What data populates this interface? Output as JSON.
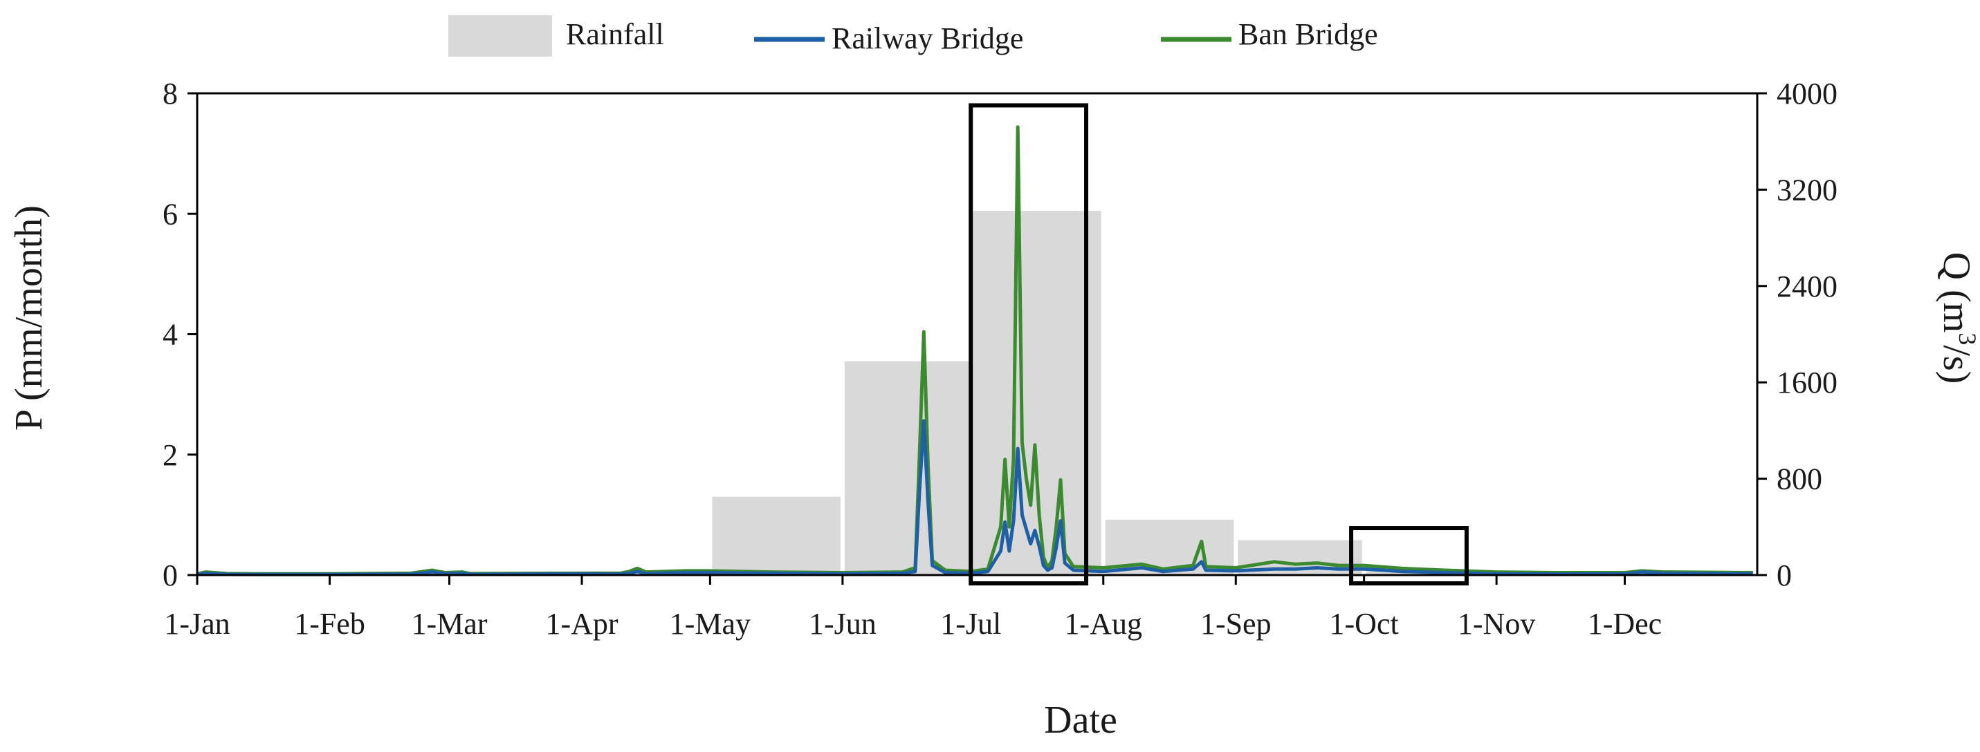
{
  "chart_data": {
    "type": "area+line",
    "xlabel": "Date",
    "ylabel_left": "P (mm/month)",
    "ylabel_right_base": "Q (m",
    "ylabel_right_sup": "3",
    "ylabel_right_end": "/s)",
    "x_ticks": [
      "1-Jan",
      "1-Feb",
      "1-Mar",
      "1-Apr",
      "1-May",
      "1-Jun",
      "1-Jul",
      "1-Aug",
      "1-Sep",
      "1-Oct",
      "1-Nov",
      "1-Dec"
    ],
    "x_tick_days": [
      0,
      31,
      59,
      90,
      120,
      151,
      181,
      212,
      243,
      273,
      304,
      334
    ],
    "x_range_days": [
      0,
      365
    ],
    "y_left_ticks": [
      "0",
      "2",
      "4",
      "6",
      "8"
    ],
    "y_left_range": [
      0,
      8
    ],
    "y_right_ticks": [
      "0",
      "800",
      "1600",
      "2400",
      "3200",
      "4000"
    ],
    "y_right_range": [
      0,
      4000
    ],
    "grid": false,
    "legend": {
      "placement": "top-center",
      "items": [
        "Rainfall",
        "Railway Bridge",
        "Ban Bridge"
      ]
    },
    "colors": {
      "rainfall": "#d9d9d9",
      "railway": "#1f5fa6",
      "ban": "#3b8a2f",
      "box": "#000000"
    },
    "rainfall": {
      "name": "Rainfall",
      "months": [
        {
          "start": "1-May",
          "end": "1-Jun",
          "value": 1.3
        },
        {
          "start": "1-Jun",
          "end": "1-Jul",
          "value": 3.55
        },
        {
          "start": "1-Jul",
          "end": "1-Aug",
          "value": 6.05
        },
        {
          "start": "1-Aug",
          "end": "1-Sep",
          "value": 0.92
        },
        {
          "start": "1-Sep",
          "end": "1-Oct",
          "value": 0.58
        },
        {
          "start": "1-Oct",
          "end": "1-Nov",
          "value": 0.06
        }
      ]
    },
    "series": [
      {
        "name": "Railway Bridge",
        "points": [
          [
            "1-Jan",
            5
          ],
          [
            "3-Jan",
            15
          ],
          [
            "8-Jan",
            6
          ],
          [
            "15-Jan",
            5
          ],
          [
            "1-Feb",
            5
          ],
          [
            "20-Feb",
            8
          ],
          [
            "25-Feb",
            25
          ],
          [
            "28-Feb",
            12
          ],
          [
            "4-Mar",
            15
          ],
          [
            "6-Mar",
            6
          ],
          [
            "1-Apr",
            10
          ],
          [
            "10-Apr",
            8
          ],
          [
            "12-Apr",
            15
          ],
          [
            "14-Apr",
            30
          ],
          [
            "16-Apr",
            12
          ],
          [
            "25-Apr",
            20
          ],
          [
            "1-May",
            20
          ],
          [
            "15-May",
            15
          ],
          [
            "1-Jun",
            10
          ],
          [
            "15-Jun",
            15
          ],
          [
            "18-Jun",
            30
          ],
          [
            "19-Jun",
            700
          ],
          [
            "20-Jun",
            1280
          ],
          [
            "21-Jun",
            600
          ],
          [
            "22-Jun",
            80
          ],
          [
            "25-Jun",
            20
          ],
          [
            "1-Jul",
            15
          ],
          [
            "5-Jul",
            30
          ],
          [
            "8-Jul",
            200
          ],
          [
            "9-Jul",
            440
          ],
          [
            "10-Jul",
            200
          ],
          [
            "11-Jul",
            450
          ],
          [
            "12-Jul",
            1050
          ],
          [
            "13-Jul",
            500
          ],
          [
            "14-Jul",
            380
          ],
          [
            "15-Jul",
            260
          ],
          [
            "16-Jul",
            370
          ],
          [
            "17-Jul",
            240
          ],
          [
            "18-Jul",
            80
          ],
          [
            "19-Jul",
            40
          ],
          [
            "20-Jul",
            60
          ],
          [
            "21-Jul",
            230
          ],
          [
            "22-Jul",
            450
          ],
          [
            "23-Jul",
            100
          ],
          [
            "25-Jul",
            40
          ],
          [
            "1-Aug",
            30
          ],
          [
            "10-Aug",
            60
          ],
          [
            "15-Aug",
            30
          ],
          [
            "22-Aug",
            50
          ],
          [
            "24-Aug",
            110
          ],
          [
            "25-Aug",
            40
          ],
          [
            "1-Sep",
            35
          ],
          [
            "10-Sep",
            50
          ],
          [
            "15-Sep",
            50
          ],
          [
            "20-Sep",
            60
          ],
          [
            "25-Sep",
            50
          ],
          [
            "1-Oct",
            50
          ],
          [
            "10-Oct",
            30
          ],
          [
            "20-Oct",
            20
          ],
          [
            "1-Nov",
            10
          ],
          [
            "15-Nov",
            8
          ],
          [
            "1-Dec",
            10
          ],
          [
            "5-Dec",
            25
          ],
          [
            "10-Dec",
            15
          ],
          [
            "31-Dec",
            10
          ]
        ]
      },
      {
        "name": "Ban Bridge",
        "points": [
          [
            "1-Jan",
            10
          ],
          [
            "3-Jan",
            25
          ],
          [
            "8-Jan",
            12
          ],
          [
            "15-Jan",
            10
          ],
          [
            "1-Feb",
            10
          ],
          [
            "20-Feb",
            15
          ],
          [
            "25-Feb",
            40
          ],
          [
            "28-Feb",
            20
          ],
          [
            "4-Mar",
            25
          ],
          [
            "6-Mar",
            12
          ],
          [
            "1-Apr",
            15
          ],
          [
            "10-Apr",
            15
          ],
          [
            "12-Apr",
            30
          ],
          [
            "14-Apr",
            55
          ],
          [
            "16-Apr",
            25
          ],
          [
            "25-Apr",
            35
          ],
          [
            "1-May",
            35
          ],
          [
            "15-May",
            25
          ],
          [
            "1-Jun",
            20
          ],
          [
            "15-Jun",
            25
          ],
          [
            "18-Jun",
            60
          ],
          [
            "19-Jun",
            1000
          ],
          [
            "20-Jun",
            2020
          ],
          [
            "21-Jun",
            900
          ],
          [
            "22-Jun",
            120
          ],
          [
            "25-Jun",
            40
          ],
          [
            "1-Jul",
            30
          ],
          [
            "5-Jul",
            50
          ],
          [
            "8-Jul",
            400
          ],
          [
            "9-Jul",
            960
          ],
          [
            "10-Jul",
            400
          ],
          [
            "11-Jul",
            960
          ],
          [
            "12-Jul",
            3720
          ],
          [
            "13-Jul",
            1100
          ],
          [
            "14-Jul",
            800
          ],
          [
            "15-Jul",
            580
          ],
          [
            "16-Jul",
            1080
          ],
          [
            "17-Jul",
            500
          ],
          [
            "18-Jul",
            150
          ],
          [
            "19-Jul",
            60
          ],
          [
            "20-Jul",
            120
          ],
          [
            "21-Jul",
            400
          ],
          [
            "22-Jul",
            790
          ],
          [
            "23-Jul",
            180
          ],
          [
            "25-Jul",
            70
          ],
          [
            "1-Aug",
            60
          ],
          [
            "10-Aug",
            90
          ],
          [
            "15-Aug",
            50
          ],
          [
            "22-Aug",
            80
          ],
          [
            "24-Aug",
            280
          ],
          [
            "25-Aug",
            70
          ],
          [
            "1-Sep",
            60
          ],
          [
            "10-Sep",
            110
          ],
          [
            "15-Sep",
            90
          ],
          [
            "20-Sep",
            100
          ],
          [
            "25-Sep",
            80
          ],
          [
            "1-Oct",
            80
          ],
          [
            "10-Oct",
            55
          ],
          [
            "20-Oct",
            40
          ],
          [
            "1-Nov",
            25
          ],
          [
            "15-Nov",
            20
          ],
          [
            "1-Dec",
            20
          ],
          [
            "5-Dec",
            35
          ],
          [
            "10-Dec",
            25
          ],
          [
            "31-Dec",
            20
          ]
        ]
      }
    ],
    "highlight_boxes": [
      {
        "x_start": "1-Jul",
        "x_end": "28-Jul",
        "y_start_P": 0,
        "y_end_P": 7.8
      },
      {
        "x_start": "28-Sep",
        "x_end": "25-Oct",
        "y_start_P": 0,
        "y_end_P": 0.78
      }
    ]
  }
}
